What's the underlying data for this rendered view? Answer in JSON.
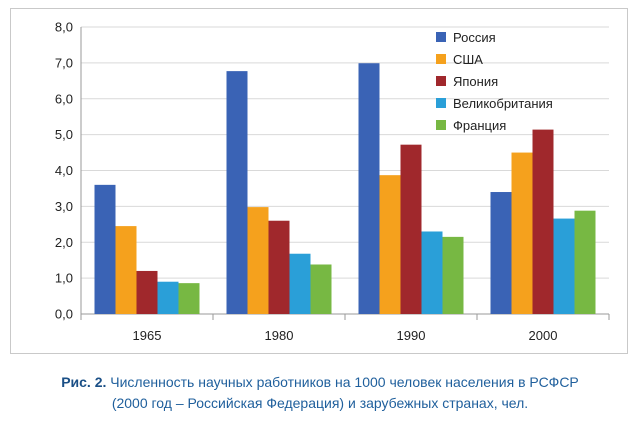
{
  "chart_data": {
    "type": "bar",
    "categories": [
      "1965",
      "1980",
      "1990",
      "2000"
    ],
    "series": [
      {
        "name": "Россия",
        "color": "#3a63b5",
        "values": [
          3.6,
          6.77,
          6.99,
          3.4
        ]
      },
      {
        "name": "США",
        "color": "#f5a11d",
        "values": [
          2.45,
          2.98,
          3.87,
          4.5
        ]
      },
      {
        "name": "Япония",
        "color": "#a0282c",
        "values": [
          1.2,
          2.6,
          4.72,
          5.14
        ]
      },
      {
        "name": "Великобритания",
        "color": "#2a9fd8",
        "values": [
          0.9,
          1.68,
          2.3,
          2.66
        ]
      },
      {
        "name": "Франция",
        "color": "#77b843",
        "values": [
          0.86,
          1.38,
          2.15,
          2.88
        ]
      }
    ],
    "y_ticks": [
      "0,0",
      "1,0",
      "2,0",
      "3,0",
      "4,0",
      "5,0",
      "6,0",
      "7,0",
      "8,0"
    ],
    "ylim": [
      0,
      8
    ],
    "grid": true,
    "legend_position": "top-right"
  },
  "caption": {
    "label": "Рис. 2.",
    "line1": " Численность научных работников на 1000 человек населения в РСФСР",
    "line2": "(2000 год – Российская Федерация) и зарубежных странах, чел."
  }
}
